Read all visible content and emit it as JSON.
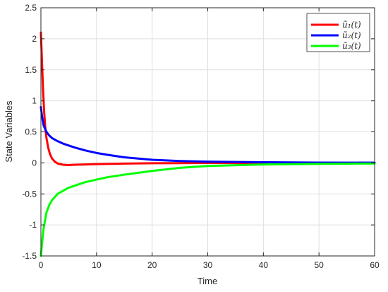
{
  "chart_data": {
    "type": "line",
    "title": "",
    "xlabel": "Time",
    "ylabel": "State Variables",
    "xlim": [
      0,
      60
    ],
    "ylim": [
      -1.5,
      2.5
    ],
    "xticks": [
      0,
      10,
      20,
      30,
      40,
      50,
      60
    ],
    "yticks": [
      -1.5,
      -1,
      -0.5,
      0,
      0.5,
      1,
      1.5,
      2,
      2.5
    ],
    "xtick_labels": [
      "0",
      "10",
      "20",
      "30",
      "40",
      "50",
      "60"
    ],
    "ytick_labels": [
      "-1.5",
      "-1",
      "-0.5",
      "0",
      "0.5",
      "1",
      "1.5",
      "2",
      "2.5"
    ],
    "grid": true,
    "legend_position": "top-right",
    "series": [
      {
        "name": "ũ₁(t)",
        "color": "#ff0000",
        "x": [
          0,
          0.2,
          0.4,
          0.6,
          0.8,
          1.0,
          1.3,
          1.6,
          2.0,
          2.5,
          3.0,
          4.0,
          5.0,
          6.0,
          8.0,
          10.0,
          15.0,
          20.0,
          30.0,
          40.0,
          50.0,
          60.0
        ],
        "y": [
          2.1,
          1.6,
          1.15,
          0.8,
          0.55,
          0.4,
          0.25,
          0.15,
          0.07,
          0.02,
          -0.01,
          -0.03,
          -0.035,
          -0.03,
          -0.025,
          -0.02,
          -0.012,
          -0.006,
          -0.002,
          -0.001,
          0,
          0
        ]
      },
      {
        "name": "ũ₂(t)",
        "color": "#0000ff",
        "x": [
          0,
          0.2,
          0.5,
          1.0,
          1.5,
          2.0,
          3.0,
          4.0,
          5.0,
          6.0,
          8.0,
          10.0,
          12.0,
          15.0,
          20.0,
          25.0,
          30.0,
          40.0,
          50.0,
          60.0
        ],
        "y": [
          0.9,
          0.75,
          0.6,
          0.5,
          0.44,
          0.4,
          0.35,
          0.31,
          0.28,
          0.25,
          0.2,
          0.16,
          0.13,
          0.09,
          0.05,
          0.03,
          0.02,
          0.01,
          0.005,
          0.003
        ]
      },
      {
        "name": "ũ₃(t)",
        "color": "#00ff00",
        "x": [
          0,
          0.2,
          0.5,
          1.0,
          1.5,
          2.0,
          3.0,
          4.0,
          5.0,
          6.0,
          8.0,
          10.0,
          12.0,
          15.0,
          20.0,
          25.0,
          30.0,
          40.0,
          50.0,
          60.0
        ],
        "y": [
          -1.5,
          -1.3,
          -1.05,
          -0.8,
          -0.68,
          -0.6,
          -0.5,
          -0.45,
          -0.4,
          -0.37,
          -0.31,
          -0.27,
          -0.23,
          -0.19,
          -0.13,
          -0.08,
          -0.05,
          -0.025,
          -0.015,
          -0.01
        ]
      }
    ]
  }
}
